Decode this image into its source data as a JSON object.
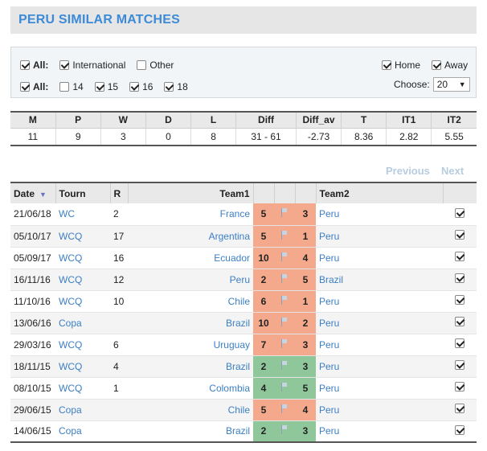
{
  "title": "PERU SIMILAR MATCHES",
  "filters": {
    "row1": {
      "all_label": "All:",
      "international_label": "International",
      "other_label": "Other",
      "home_label": "Home",
      "away_label": "Away"
    },
    "row2": {
      "all_label": "All:",
      "y14": "14",
      "y15": "15",
      "y16": "16",
      "y18": "18",
      "choose_label": "Choose:",
      "choose_value": "20"
    },
    "checked": {
      "all1": true,
      "international": true,
      "other": false,
      "home": true,
      "away": true,
      "all2": true,
      "y14": false,
      "y15": true,
      "y16": true,
      "y18": true
    }
  },
  "stats": {
    "headers": [
      "M",
      "P",
      "W",
      "D",
      "L",
      "Diff",
      "Diff_av",
      "T",
      "IT1",
      "IT2"
    ],
    "values": [
      "11",
      "9",
      "3",
      "0",
      "8",
      "31 - 61",
      "-2.73",
      "8.36",
      "2.82",
      "5.55"
    ]
  },
  "pager": {
    "previous": "Previous",
    "next": "Next"
  },
  "matches": {
    "headers": {
      "date": "Date",
      "tourn": "Tourn",
      "r": "R",
      "team1": "Team1",
      "team2": "Team2"
    },
    "rows": [
      {
        "date": "21/06/18",
        "tourn": "WC",
        "r": "2",
        "team1": "France",
        "s1": "5",
        "s2": "3",
        "team2": "Peru",
        "result": "red"
      },
      {
        "date": "05/10/17",
        "tourn": "WCQ",
        "r": "17",
        "team1": "Argentina",
        "s1": "5",
        "s2": "1",
        "team2": "Peru",
        "result": "red"
      },
      {
        "date": "05/09/17",
        "tourn": "WCQ",
        "r": "16",
        "team1": "Ecuador",
        "s1": "10",
        "s2": "4",
        "team2": "Peru",
        "result": "red"
      },
      {
        "date": "16/11/16",
        "tourn": "WCQ",
        "r": "12",
        "team1": "Peru",
        "s1": "2",
        "s2": "5",
        "team2": "Brazil",
        "result": "red"
      },
      {
        "date": "11/10/16",
        "tourn": "WCQ",
        "r": "10",
        "team1": "Chile",
        "s1": "6",
        "s2": "1",
        "team2": "Peru",
        "result": "red"
      },
      {
        "date": "13/06/16",
        "tourn": "Copa",
        "r": "",
        "team1": "Brazil",
        "s1": "10",
        "s2": "2",
        "team2": "Peru",
        "result": "red"
      },
      {
        "date": "29/03/16",
        "tourn": "WCQ",
        "r": "6",
        "team1": "Uruguay",
        "s1": "7",
        "s2": "3",
        "team2": "Peru",
        "result": "red"
      },
      {
        "date": "18/11/15",
        "tourn": "WCQ",
        "r": "4",
        "team1": "Brazil",
        "s1": "2",
        "s2": "3",
        "team2": "Peru",
        "result": "green"
      },
      {
        "date": "08/10/15",
        "tourn": "WCQ",
        "r": "1",
        "team1": "Colombia",
        "s1": "4",
        "s2": "5",
        "team2": "Peru",
        "result": "green"
      },
      {
        "date": "29/06/15",
        "tourn": "Copa",
        "r": "",
        "team1": "Chile",
        "s1": "5",
        "s2": "4",
        "team2": "Peru",
        "result": "red"
      },
      {
        "date": "14/06/15",
        "tourn": "Copa",
        "r": "",
        "team1": "Brazil",
        "s1": "2",
        "s2": "3",
        "team2": "Peru",
        "result": "green"
      }
    ]
  },
  "colors": {
    "accent": "#3c8ad8",
    "loss": "#f4a98d",
    "win": "#8fc79a",
    "link": "#3c7fc4"
  }
}
